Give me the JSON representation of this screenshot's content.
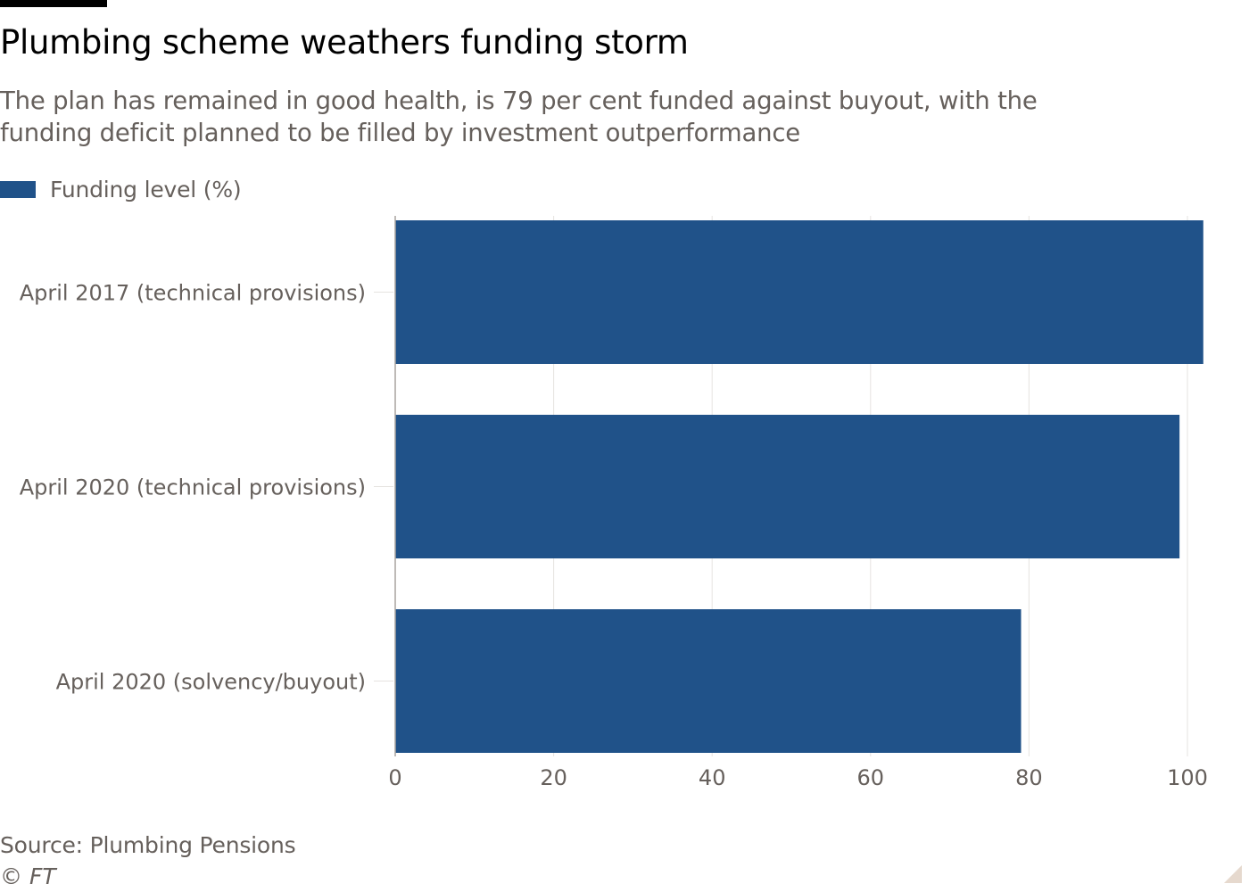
{
  "header": {
    "title": "Plumbing scheme weathers funding storm",
    "subtitle": "The plan has remained in good health, is 79 per cent funded against buyout, with the funding deficit planned to be filled by investment outperformance"
  },
  "legend": {
    "label": "Funding level (%)",
    "color": "#205289"
  },
  "footer": {
    "source": "Source: Plumbing Pensions",
    "copyright": "© FT"
  },
  "colors": {
    "bar": "#205289",
    "grid": "#e6e3e0",
    "axis": "#a9a49f",
    "text": "#66605c",
    "corner": "#e6d9ce"
  },
  "chart_data": {
    "type": "bar",
    "orientation": "horizontal",
    "categories": [
      "April 2017 (technical provisions)",
      "April 2020 (technical provisions)",
      "April 2020 (solvency/buyout)"
    ],
    "series": [
      {
        "name": "Funding level (%)",
        "values": [
          102,
          99,
          79
        ]
      }
    ],
    "xlim": [
      0,
      100
    ],
    "xticks": [
      0,
      20,
      40,
      60,
      80,
      100
    ],
    "xtick_labels": [
      "0",
      "20",
      "40",
      "60",
      "80",
      "100"
    ],
    "xlabel": "",
    "ylabel": "",
    "grid": true,
    "legend_position": "top-left"
  }
}
